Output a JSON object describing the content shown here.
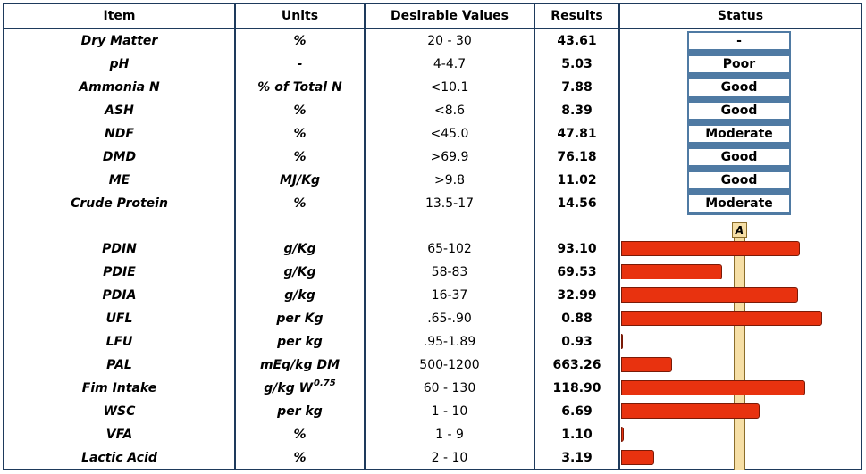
{
  "headers": {
    "item": "Item",
    "units": "Units",
    "desirable": "Desirable Values",
    "results": "Results",
    "status": "Status"
  },
  "status_rows": [
    {
      "item": "Dry Matter",
      "units": "%",
      "desirable": "20 - 30",
      "result": "43.61",
      "status": "-"
    },
    {
      "item": "pH",
      "units": "-",
      "desirable": "4-4.7",
      "result": "5.03",
      "status": "Poor"
    },
    {
      "item": "Ammonia N",
      "units": "% of Total N",
      "desirable": "<10.1",
      "result": "7.88",
      "status": "Good"
    },
    {
      "item": "ASH",
      "units": "%",
      "desirable": "<8.6",
      "result": "8.39",
      "status": "Good"
    },
    {
      "item": "NDF",
      "units": "%",
      "desirable": "<45.0",
      "result": "47.81",
      "status": "Moderate"
    },
    {
      "item": "DMD",
      "units": "%",
      "desirable": ">69.9",
      "result": "76.18",
      "status": "Good"
    },
    {
      "item": "ME",
      "units": "MJ/Kg",
      "desirable": ">9.8",
      "result": "11.02",
      "status": "Good"
    },
    {
      "item": "Crude Protein",
      "units": "%",
      "desirable": "13.5-17",
      "result": "14.56",
      "status": "Moderate"
    }
  ],
  "gauge_label": "A",
  "bar_rows": [
    {
      "item": "PDIN",
      "units": "g/Kg",
      "desirable": "65-102",
      "result": "93.10",
      "bar_fraction": 0.818
    },
    {
      "item": "PDIE",
      "units": "g/Kg",
      "desirable": "58-83",
      "result": "69.53",
      "bar_fraction": 0.462
    },
    {
      "item": "PDIA",
      "units": "g/kg",
      "desirable": "16-37",
      "result": "32.99",
      "bar_fraction": 0.809
    },
    {
      "item": "UFL",
      "units": "per Kg",
      "desirable": ".65-.90",
      "result": "0.88",
      "bar_fraction": 0.92
    },
    {
      "item": "LFU",
      "units": "per kg",
      "desirable": ".95-1.89",
      "result": "0.93",
      "bar_fraction": 0.0
    },
    {
      "item": "PAL",
      "units": "mEq/kg DM",
      "desirable": "500-1200",
      "result": "663.26",
      "bar_fraction": 0.233
    },
    {
      "item": "Fim Intake",
      "units": "g/kg W",
      "units_sup": "0.75",
      "desirable": "60 - 130",
      "result": "118.90",
      "bar_fraction": 0.841
    },
    {
      "item": "WSC",
      "units": "per kg",
      "desirable": "1 - 10",
      "result": "6.69",
      "bar_fraction": 0.632
    },
    {
      "item": "VFA",
      "units": "%",
      "desirable": "1 - 9",
      "result": "1.10",
      "bar_fraction": 0.011
    },
    {
      "item": "Lactic Acid",
      "units": "%",
      "desirable": "2 - 10",
      "result": "3.19",
      "bar_fraction": 0.149
    }
  ],
  "colors": {
    "frame": "#1e3a5c",
    "bar": "#e8320f",
    "gauge": "#f6dfa6",
    "status_border": "#4f7aa3"
  }
}
